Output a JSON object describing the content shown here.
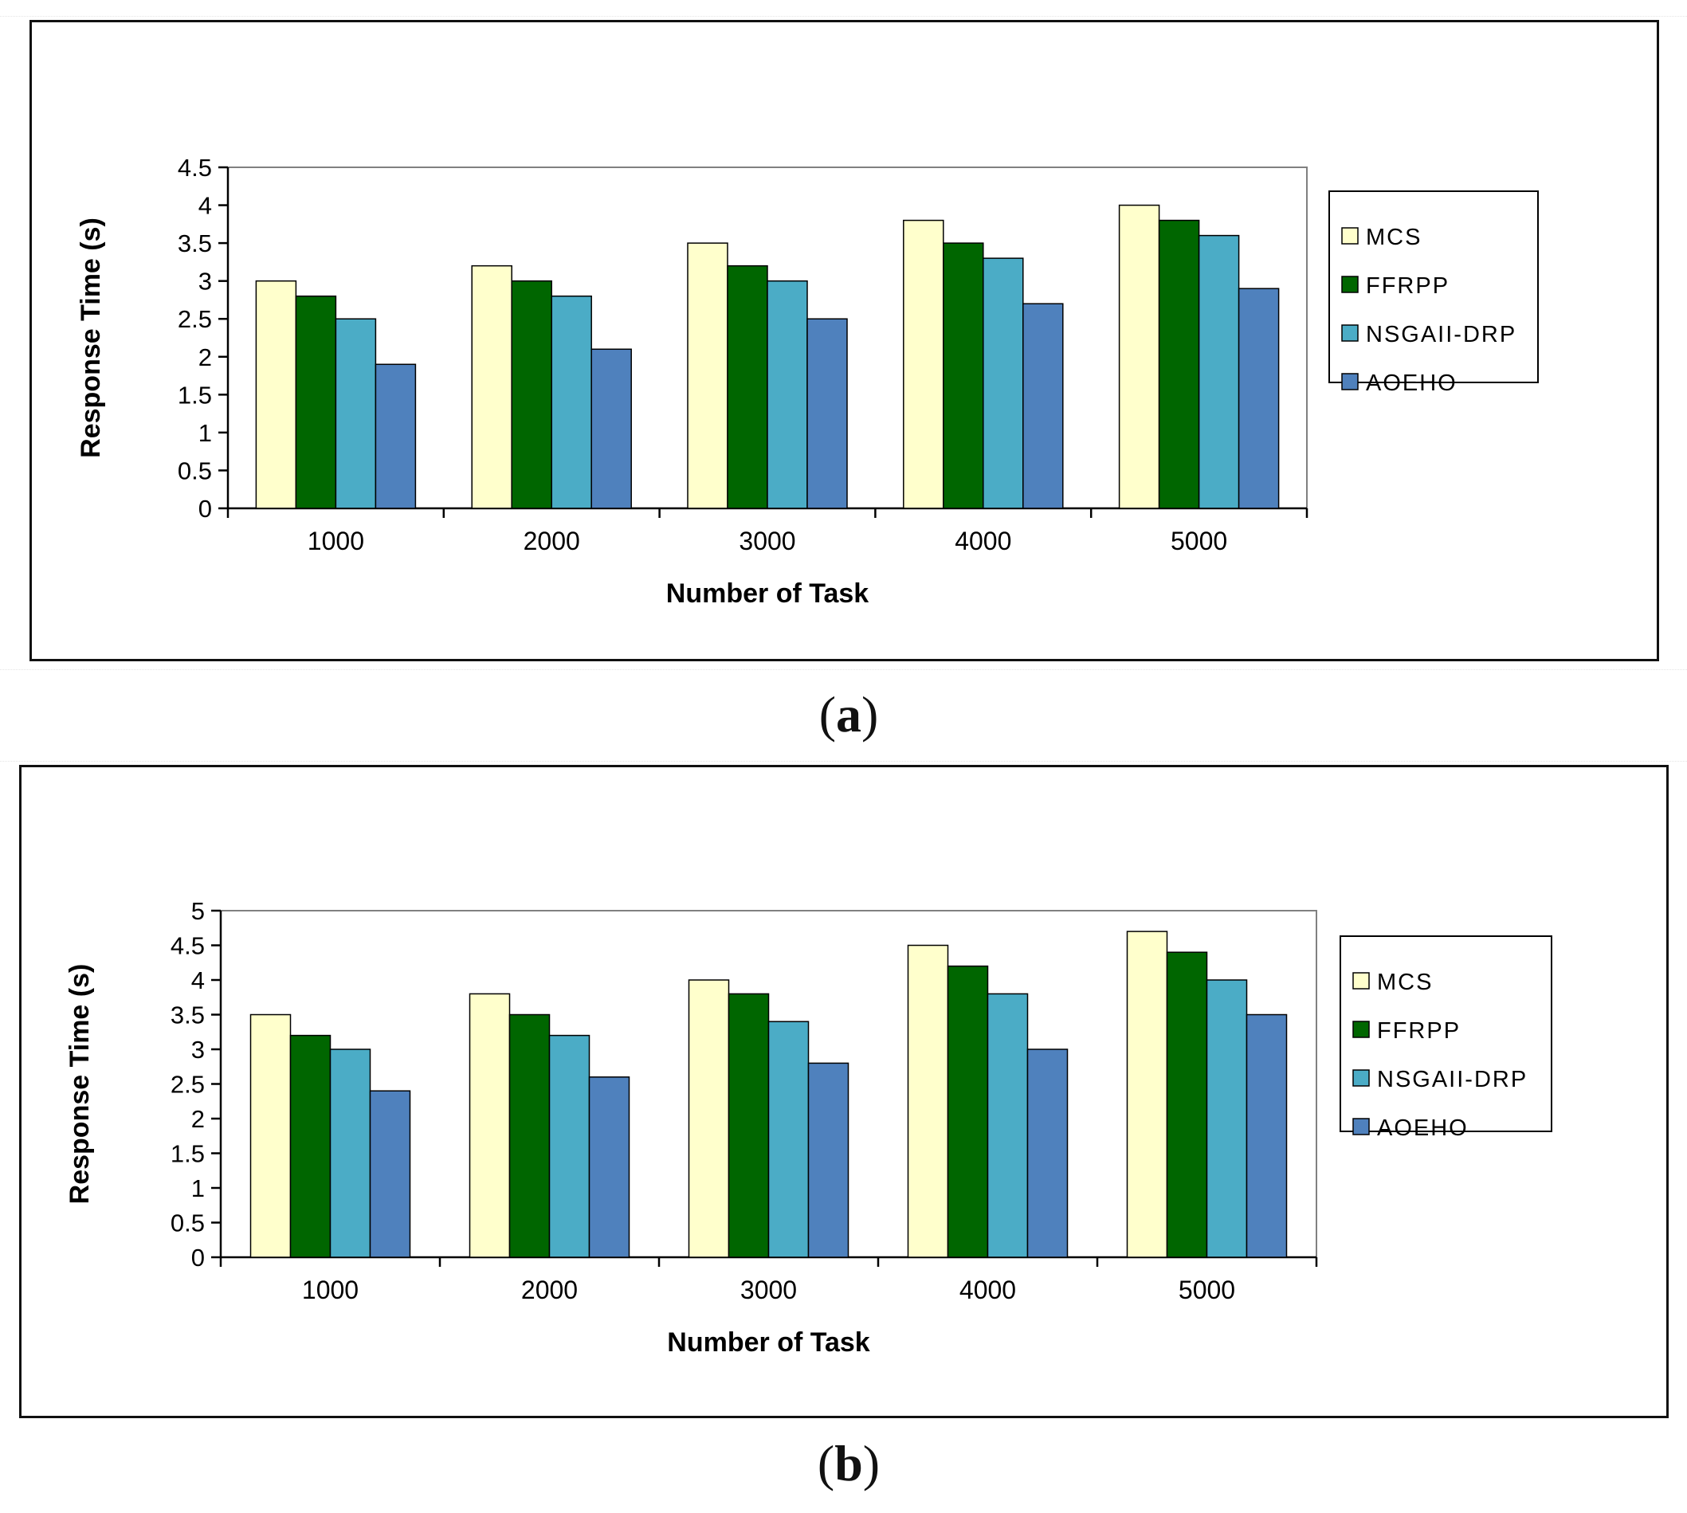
{
  "figure": {
    "captions": [
      "a",
      "b"
    ]
  },
  "colors": {
    "MCS": "#ffffcc",
    "FFRPP": "#006600",
    "NSGAII-DRP": "#4bacc6",
    "AOEHO": "#4f81bd"
  },
  "chart_data": [
    {
      "type": "bar",
      "title": "",
      "xlabel": "Number of Task",
      "ylabel": "Response  Time (s)",
      "categories": [
        "1000",
        "2000",
        "3000",
        "4000",
        "5000"
      ],
      "ylim": [
        0,
        4.5
      ],
      "yticks": [
        "0",
        "0.5",
        "1",
        "1.5",
        "2",
        "2.5",
        "3",
        "3.5",
        "4",
        "4.5"
      ],
      "legend_position": "right",
      "series": [
        {
          "name": "MCS",
          "values": [
            3.0,
            3.2,
            3.5,
            3.8,
            4.0
          ]
        },
        {
          "name": "FFRPP",
          "values": [
            2.8,
            3.0,
            3.2,
            3.5,
            3.8
          ]
        },
        {
          "name": "NSGAII-DRP",
          "values": [
            2.5,
            2.8,
            3.0,
            3.3,
            3.6
          ]
        },
        {
          "name": "AOEHO",
          "values": [
            1.9,
            2.1,
            2.5,
            2.7,
            2.9
          ]
        }
      ],
      "legend_labels": [
        "MCS",
        "FFRPP",
        "NSGAII-DRP",
        "AOEHO"
      ]
    },
    {
      "type": "bar",
      "title": "",
      "xlabel": "Number of Task",
      "ylabel": "Response  Time (s)",
      "categories": [
        "1000",
        "2000",
        "3000",
        "4000",
        "5000"
      ],
      "ylim": [
        0,
        5
      ],
      "yticks": [
        "0",
        "0.5",
        "1",
        "1.5",
        "2",
        "2.5",
        "3",
        "3.5",
        "4",
        "4.5",
        "5"
      ],
      "legend_position": "right",
      "series": [
        {
          "name": "MCS",
          "values": [
            3.5,
            3.8,
            4.0,
            4.5,
            4.7
          ]
        },
        {
          "name": "FFRPP",
          "values": [
            3.2,
            3.5,
            3.8,
            4.2,
            4.4
          ]
        },
        {
          "name": "NSGAII-DRP",
          "values": [
            3.0,
            3.2,
            3.4,
            3.8,
            4.0
          ]
        },
        {
          "name": "AOEHO",
          "values": [
            2.4,
            2.6,
            2.8,
            3.0,
            3.5
          ]
        }
      ],
      "legend_labels": [
        "MCS",
        "FFRPP",
        "NSGAII-DRP",
        "AOEHO"
      ]
    }
  ]
}
